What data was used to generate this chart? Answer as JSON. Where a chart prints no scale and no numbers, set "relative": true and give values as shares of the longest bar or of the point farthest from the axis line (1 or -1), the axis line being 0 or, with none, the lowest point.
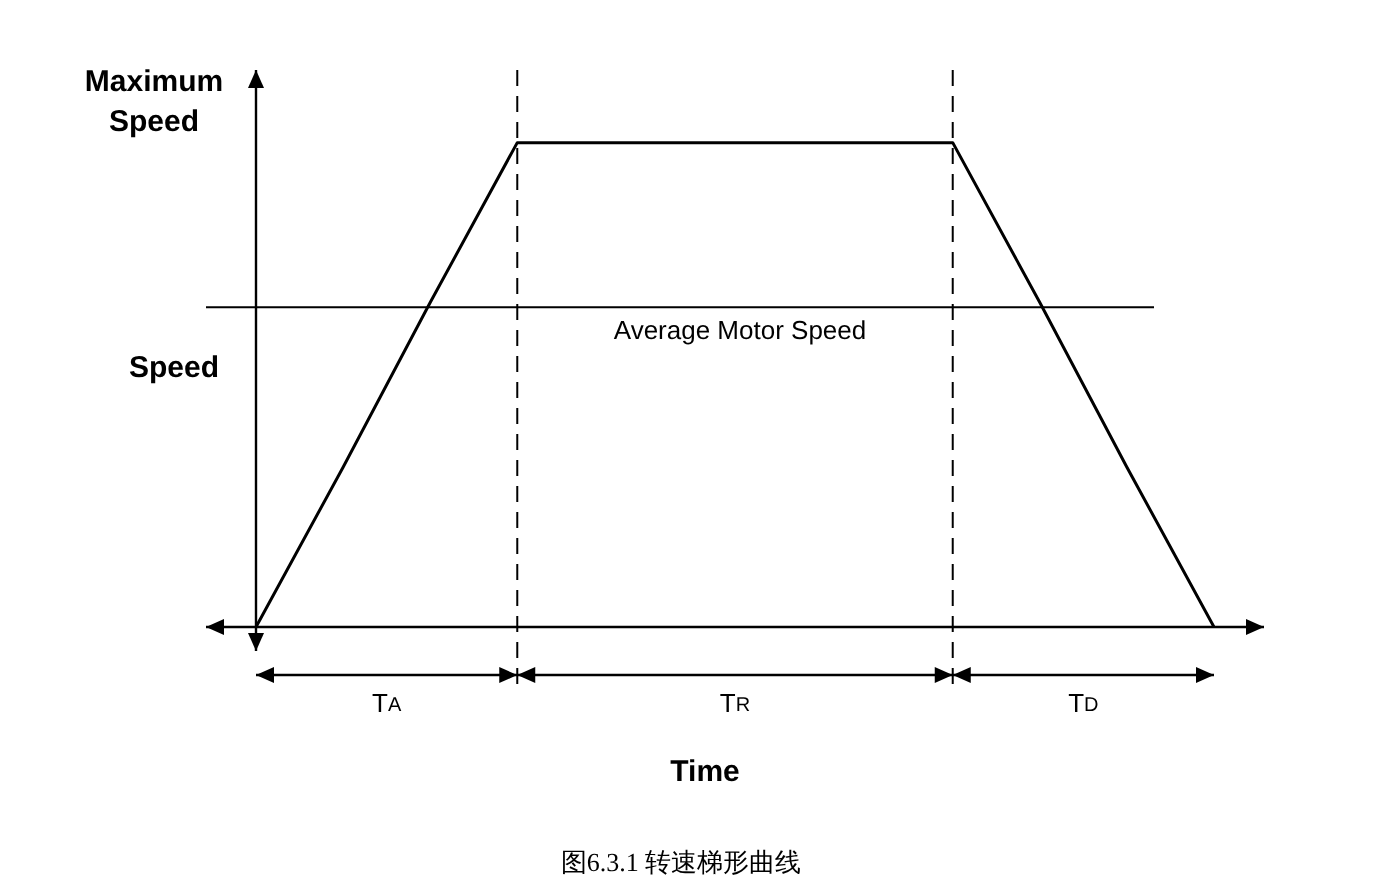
{
  "chart_data": {
    "type": "line",
    "relative": true,
    "xlabel": "Time",
    "ylabel": "Speed",
    "categories": [
      null,
      null,
      null,
      null,
      null,
      null,
      null,
      null,
      null,
      null,
      null,
      null
    ],
    "series": [
      {
        "color": "#000000",
        "values": [
          0,
          0.33,
          0.67,
          1,
          1,
          1,
          1,
          1,
          1,
          0.67,
          0.33,
          0
        ]
      }
    ],
    "legend": false,
    "marker": "none",
    "line_style": "solid",
    "ref_lines": [
      {
        "axis": "y",
        "value": 0.66,
        "label": "Average Motor Speed",
        "color": "#000000",
        "line_style": "solid"
      }
    ],
    "annotations": [
      "Maximum Speed",
      "T$_{A}$",
      "T$_{R}$",
      "T$_{D}$",
      "图6.3.1 转速梯形曲线"
    ]
  }
}
